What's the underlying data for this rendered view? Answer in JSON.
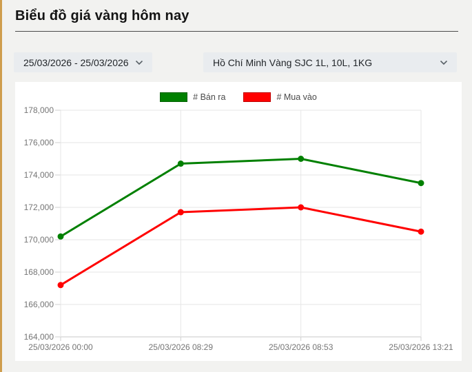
{
  "page": {
    "title": "Biểu đồ giá vàng hôm nay",
    "accent_color": "#cf9d4d"
  },
  "filters": {
    "date_range": "25/03/2026 - 25/03/2026",
    "market": "Hồ Chí Minh Vàng SJC 1L, 10L, 1KG"
  },
  "chart_data": {
    "type": "line",
    "title": "",
    "x": [
      "25/03/2026 00:00",
      "25/03/2026 08:29",
      "25/03/2026 08:53",
      "25/03/2026 13:21"
    ],
    "series": [
      {
        "name": "# Bán ra",
        "color": "#008000",
        "values": [
          170200,
          174700,
          175000,
          173500
        ]
      },
      {
        "name": "# Mua vào",
        "color": "#ff0000",
        "values": [
          167200,
          171700,
          172000,
          170500
        ]
      }
    ],
    "ylim": [
      164000,
      178000
    ],
    "ytick_step": 2000,
    "grid": true,
    "legend_position": "top",
    "colors": {
      "gridline": "#e6e6e6",
      "axis_line": "#c9c9c9",
      "tick": "#cfcfcf",
      "axis_text": "#757575"
    }
  }
}
